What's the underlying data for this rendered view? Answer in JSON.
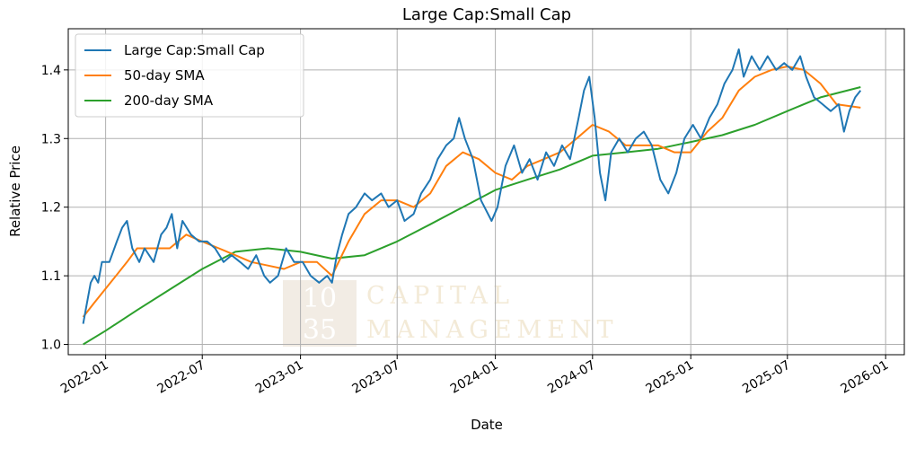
{
  "chart_data": {
    "type": "line",
    "title": "Large Cap:Small Cap",
    "xlabel": "Date",
    "ylabel": "Relative Price",
    "xlim": [
      "2021-10-23",
      "2026-02-05"
    ],
    "ylim": [
      0.985,
      1.46
    ],
    "grid": true,
    "legend_position": "upper-left",
    "x_ticks": [
      "2022-01",
      "2022-07",
      "2023-01",
      "2023-07",
      "2024-01",
      "2024-07",
      "2025-01",
      "2025-07",
      "2026-01"
    ],
    "y_ticks": [
      1.0,
      1.1,
      1.2,
      1.3,
      1.4
    ],
    "y_tick_labels": [
      "1.0",
      "1.1",
      "1.2",
      "1.3",
      "1.4"
    ],
    "series": [
      {
        "name": "Large Cap:Small Cap",
        "color": "#1f77b4",
        "points": [
          [
            "2021-11-20",
            1.03
          ],
          [
            "2021-11-27",
            1.06
          ],
          [
            "2021-12-04",
            1.09
          ],
          [
            "2021-12-11",
            1.1
          ],
          [
            "2021-12-18",
            1.09
          ],
          [
            "2021-12-25",
            1.12
          ],
          [
            "2022-01-08",
            1.12
          ],
          [
            "2022-01-22",
            1.15
          ],
          [
            "2022-02-01",
            1.17
          ],
          [
            "2022-02-10",
            1.18
          ],
          [
            "2022-02-20",
            1.14
          ],
          [
            "2022-03-05",
            1.12
          ],
          [
            "2022-03-15",
            1.14
          ],
          [
            "2022-04-01",
            1.12
          ],
          [
            "2022-04-15",
            1.16
          ],
          [
            "2022-04-25",
            1.17
          ],
          [
            "2022-05-05",
            1.19
          ],
          [
            "2022-05-15",
            1.14
          ],
          [
            "2022-05-25",
            1.18
          ],
          [
            "2022-06-10",
            1.16
          ],
          [
            "2022-06-25",
            1.15
          ],
          [
            "2022-07-10",
            1.15
          ],
          [
            "2022-07-25",
            1.14
          ],
          [
            "2022-08-10",
            1.12
          ],
          [
            "2022-08-25",
            1.13
          ],
          [
            "2022-09-10",
            1.12
          ],
          [
            "2022-09-25",
            1.11
          ],
          [
            "2022-10-10",
            1.13
          ],
          [
            "2022-10-25",
            1.1
          ],
          [
            "2022-11-05",
            1.09
          ],
          [
            "2022-11-20",
            1.1
          ],
          [
            "2022-12-05",
            1.14
          ],
          [
            "2022-12-20",
            1.12
          ],
          [
            "2023-01-05",
            1.12
          ],
          [
            "2023-01-20",
            1.1
          ],
          [
            "2023-02-05",
            1.09
          ],
          [
            "2023-02-20",
            1.1
          ],
          [
            "2023-03-01",
            1.09
          ],
          [
            "2023-03-10",
            1.13
          ],
          [
            "2023-03-20",
            1.16
          ],
          [
            "2023-04-01",
            1.19
          ],
          [
            "2023-04-15",
            1.2
          ],
          [
            "2023-05-01",
            1.22
          ],
          [
            "2023-05-15",
            1.21
          ],
          [
            "2023-06-01",
            1.22
          ],
          [
            "2023-06-15",
            1.2
          ],
          [
            "2023-07-01",
            1.21
          ],
          [
            "2023-07-15",
            1.18
          ],
          [
            "2023-08-01",
            1.19
          ],
          [
            "2023-08-15",
            1.22
          ],
          [
            "2023-09-01",
            1.24
          ],
          [
            "2023-09-15",
            1.27
          ],
          [
            "2023-10-01",
            1.29
          ],
          [
            "2023-10-15",
            1.3
          ],
          [
            "2023-10-25",
            1.33
          ],
          [
            "2023-11-05",
            1.3
          ],
          [
            "2023-11-20",
            1.27
          ],
          [
            "2023-12-05",
            1.21
          ],
          [
            "2023-12-25",
            1.18
          ],
          [
            "2024-01-05",
            1.2
          ],
          [
            "2024-01-20",
            1.26
          ],
          [
            "2024-02-05",
            1.29
          ],
          [
            "2024-02-20",
            1.25
          ],
          [
            "2024-03-05",
            1.27
          ],
          [
            "2024-03-20",
            1.24
          ],
          [
            "2024-04-05",
            1.28
          ],
          [
            "2024-04-20",
            1.26
          ],
          [
            "2024-05-05",
            1.29
          ],
          [
            "2024-05-20",
            1.27
          ],
          [
            "2024-06-05",
            1.33
          ],
          [
            "2024-06-15",
            1.37
          ],
          [
            "2024-06-25",
            1.39
          ],
          [
            "2024-07-05",
            1.33
          ],
          [
            "2024-07-15",
            1.25
          ],
          [
            "2024-07-25",
            1.21
          ],
          [
            "2024-08-05",
            1.28
          ],
          [
            "2024-08-20",
            1.3
          ],
          [
            "2024-09-05",
            1.28
          ],
          [
            "2024-09-20",
            1.3
          ],
          [
            "2024-10-05",
            1.31
          ],
          [
            "2024-10-20",
            1.29
          ],
          [
            "2024-11-05",
            1.24
          ],
          [
            "2024-11-20",
            1.22
          ],
          [
            "2024-12-05",
            1.25
          ],
          [
            "2024-12-20",
            1.3
          ],
          [
            "2025-01-05",
            1.32
          ],
          [
            "2025-01-20",
            1.3
          ],
          [
            "2025-02-05",
            1.33
          ],
          [
            "2025-02-20",
            1.35
          ],
          [
            "2025-03-05",
            1.38
          ],
          [
            "2025-03-20",
            1.4
          ],
          [
            "2025-04-01",
            1.43
          ],
          [
            "2025-04-10",
            1.39
          ],
          [
            "2025-04-25",
            1.42
          ],
          [
            "2025-05-10",
            1.4
          ],
          [
            "2025-05-25",
            1.42
          ],
          [
            "2025-06-10",
            1.4
          ],
          [
            "2025-06-25",
            1.41
          ],
          [
            "2025-07-10",
            1.4
          ],
          [
            "2025-07-25",
            1.42
          ],
          [
            "2025-08-05",
            1.39
          ],
          [
            "2025-08-20",
            1.36
          ],
          [
            "2025-09-05",
            1.35
          ],
          [
            "2025-09-20",
            1.34
          ],
          [
            "2025-10-05",
            1.35
          ],
          [
            "2025-10-15",
            1.31
          ],
          [
            "2025-10-25",
            1.34
          ],
          [
            "2025-11-05",
            1.36
          ],
          [
            "2025-11-15",
            1.37
          ]
        ]
      },
      {
        "name": "50-day SMA",
        "color": "#ff7f0e",
        "points": [
          [
            "2021-11-20",
            1.04
          ],
          [
            "2021-12-10",
            1.06
          ],
          [
            "2022-01-10",
            1.09
          ],
          [
            "2022-02-10",
            1.12
          ],
          [
            "2022-03-01",
            1.14
          ],
          [
            "2022-04-01",
            1.14
          ],
          [
            "2022-05-01",
            1.14
          ],
          [
            "2022-06-01",
            1.16
          ],
          [
            "2022-07-01",
            1.15
          ],
          [
            "2022-08-01",
            1.14
          ],
          [
            "2022-09-01",
            1.13
          ],
          [
            "2022-10-01",
            1.12
          ],
          [
            "2022-11-01",
            1.115
          ],
          [
            "2022-12-01",
            1.11
          ],
          [
            "2023-01-01",
            1.12
          ],
          [
            "2023-02-01",
            1.12
          ],
          [
            "2023-03-01",
            1.1
          ],
          [
            "2023-04-01",
            1.15
          ],
          [
            "2023-05-01",
            1.19
          ],
          [
            "2023-06-01",
            1.21
          ],
          [
            "2023-07-01",
            1.21
          ],
          [
            "2023-08-01",
            1.2
          ],
          [
            "2023-09-01",
            1.22
          ],
          [
            "2023-10-01",
            1.26
          ],
          [
            "2023-11-01",
            1.28
          ],
          [
            "2023-12-01",
            1.27
          ],
          [
            "2024-01-01",
            1.25
          ],
          [
            "2024-02-01",
            1.24
          ],
          [
            "2024-03-01",
            1.26
          ],
          [
            "2024-04-01",
            1.27
          ],
          [
            "2024-05-01",
            1.28
          ],
          [
            "2024-06-01",
            1.3
          ],
          [
            "2024-07-01",
            1.32
          ],
          [
            "2024-08-01",
            1.31
          ],
          [
            "2024-09-01",
            1.29
          ],
          [
            "2024-10-01",
            1.29
          ],
          [
            "2024-11-01",
            1.29
          ],
          [
            "2024-12-01",
            1.28
          ],
          [
            "2025-01-01",
            1.28
          ],
          [
            "2025-02-01",
            1.31
          ],
          [
            "2025-03-01",
            1.33
          ],
          [
            "2025-04-01",
            1.37
          ],
          [
            "2025-05-01",
            1.39
          ],
          [
            "2025-06-01",
            1.4
          ],
          [
            "2025-07-01",
            1.405
          ],
          [
            "2025-08-01",
            1.4
          ],
          [
            "2025-09-01",
            1.38
          ],
          [
            "2025-10-01",
            1.35
          ],
          [
            "2025-11-15",
            1.345
          ]
        ]
      },
      {
        "name": "200-day SMA",
        "color": "#2ca02c",
        "points": [
          [
            "2021-11-20",
            1.0
          ],
          [
            "2022-01-01",
            1.02
          ],
          [
            "2022-03-01",
            1.05
          ],
          [
            "2022-05-01",
            1.08
          ],
          [
            "2022-07-01",
            1.11
          ],
          [
            "2022-09-01",
            1.135
          ],
          [
            "2022-11-01",
            1.14
          ],
          [
            "2023-01-01",
            1.135
          ],
          [
            "2023-03-01",
            1.125
          ],
          [
            "2023-05-01",
            1.13
          ],
          [
            "2023-07-01",
            1.15
          ],
          [
            "2023-09-01",
            1.175
          ],
          [
            "2023-11-01",
            1.2
          ],
          [
            "2024-01-01",
            1.225
          ],
          [
            "2024-03-01",
            1.24
          ],
          [
            "2024-05-01",
            1.255
          ],
          [
            "2024-07-01",
            1.275
          ],
          [
            "2024-09-01",
            1.28
          ],
          [
            "2024-11-01",
            1.285
          ],
          [
            "2025-01-01",
            1.295
          ],
          [
            "2025-03-01",
            1.305
          ],
          [
            "2025-05-01",
            1.32
          ],
          [
            "2025-07-01",
            1.34
          ],
          [
            "2025-09-01",
            1.36
          ],
          [
            "2025-11-15",
            1.375
          ]
        ]
      }
    ]
  },
  "watermark": {
    "number_top": "10",
    "number_bottom": "35",
    "line1": "CAPITAL",
    "line2": "MANAGEMENT",
    "logo_color": "#f2ece4"
  }
}
